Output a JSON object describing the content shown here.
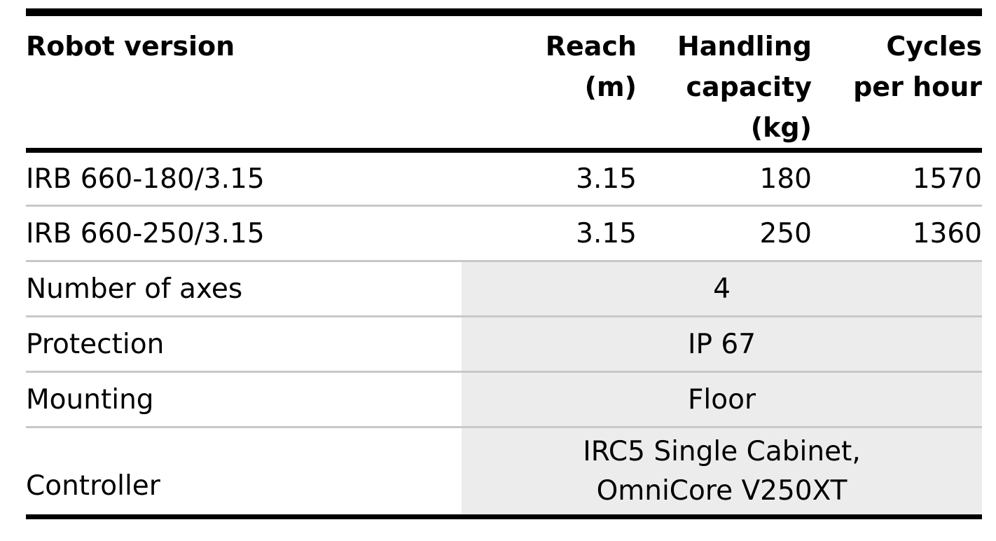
{
  "table": {
    "headers": {
      "robot_version": "Robot version",
      "reach": [
        "Reach",
        "(m)"
      ],
      "handling_capacity": [
        "Handling",
        "capacity",
        "(kg)"
      ],
      "cycles": [
        "Cycles",
        "per hour"
      ]
    },
    "robots": [
      {
        "version": "IRB 660-180/3.15",
        "reach": "3.15",
        "capacity": "180",
        "cycles": "1570"
      },
      {
        "version": "IRB 660-250/3.15",
        "reach": "3.15",
        "capacity": "250",
        "cycles": "1360"
      }
    ],
    "specs": [
      {
        "label": "Number of axes",
        "value": "4"
      },
      {
        "label": "Protection",
        "value": "IP 67"
      },
      {
        "label": "Mounting",
        "value": "Floor"
      }
    ],
    "controller": {
      "label": "Controller",
      "value": [
        "IRC5 Single Cabinet,",
        "OmniCore V250XT"
      ]
    }
  }
}
